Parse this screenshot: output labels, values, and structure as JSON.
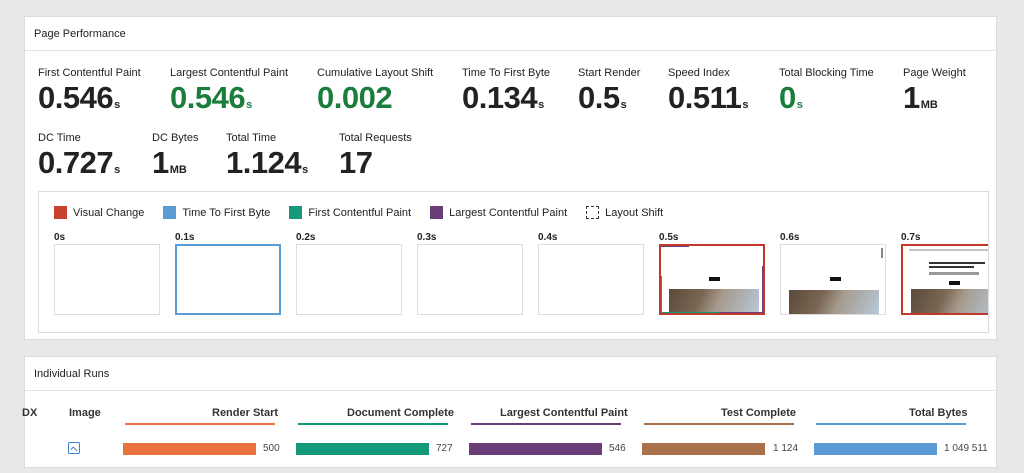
{
  "performance": {
    "title": "Page Performance",
    "metrics": [
      {
        "label": "First Contentful Paint",
        "value": "0.546",
        "unit": "s"
      },
      {
        "label": "Largest Contentful Paint",
        "value": "0.546",
        "unit": "s"
      },
      {
        "label": "Cumulative Layout Shift",
        "value": "0.002",
        "unit": ""
      },
      {
        "label": "Time To First Byte",
        "value": "0.134",
        "unit": "s"
      },
      {
        "label": "Start Render",
        "value": "0.5",
        "unit": "s"
      },
      {
        "label": "Speed Index",
        "value": "0.511",
        "unit": "s"
      },
      {
        "label": "Total Blocking Time",
        "value": "0",
        "unit": "s"
      },
      {
        "label": "Page Weight",
        "value": "1",
        "unit": "MB"
      },
      {
        "label": "DC Time",
        "value": "0.727",
        "unit": "s"
      },
      {
        "label": "DC Bytes",
        "value": "1",
        "unit": "MB"
      },
      {
        "label": "Total Time",
        "value": "1.124",
        "unit": "s"
      },
      {
        "label": "Total Requests",
        "value": "17",
        "unit": ""
      }
    ],
    "legend": [
      {
        "label": "Visual Change",
        "color": "#c9412e"
      },
      {
        "label": "Time To First Byte",
        "color": "#5b9bd5"
      },
      {
        "label": "First Contentful Paint",
        "color": "#149a7a"
      },
      {
        "label": "Largest Contentful Paint",
        "color": "#6b3d78"
      },
      {
        "label": "Layout Shift",
        "color": "dashed"
      }
    ],
    "filmstrip": [
      "0s",
      "0.1s",
      "0.2s",
      "0.3s",
      "0.4s",
      "0.5s",
      "0.6s",
      "0.7s"
    ]
  },
  "runs": {
    "title": "Individual Runs",
    "columns": {
      "partial": "DX",
      "image": "Image",
      "render_start": "Render Start",
      "document_complete": "Document Complete",
      "lcp": "Largest Contentful Paint",
      "test_complete": "Test Complete",
      "total_bytes": "Total Bytes"
    },
    "values": {
      "render_start": "500",
      "document_complete": "727",
      "lcp": "546",
      "test_complete": "1 124",
      "total_bytes": "1 049 511"
    },
    "colors": {
      "render_start": "#e8733c",
      "document_complete": "#149a7a",
      "lcp": "#6b3d78",
      "test_complete": "#a9714b",
      "total_bytes": "#5b9bd5"
    }
  }
}
